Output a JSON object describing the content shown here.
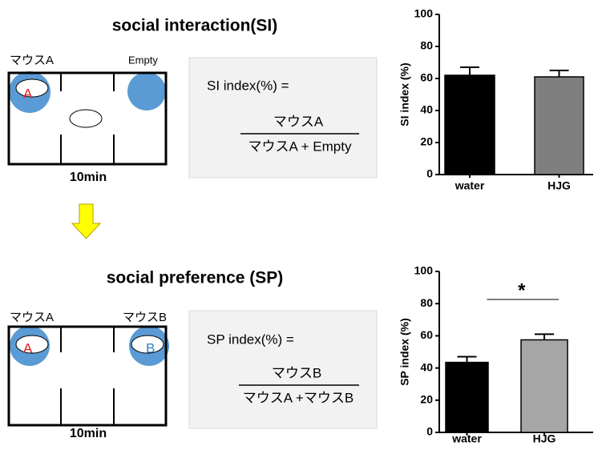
{
  "si_panel": {
    "title": "social interaction(SI)",
    "left_label": "マウスA",
    "right_label": "Empty",
    "left_marker": "A",
    "duration": "10min",
    "formula": {
      "lhs": "SI index(%) =",
      "numerator": "マウスA",
      "denominator": "マウスA + Empty"
    }
  },
  "sp_panel": {
    "title": "social preference (SP)",
    "left_label": "マウスA",
    "right_label": "マウスB",
    "left_marker": "A",
    "right_marker": "B",
    "duration": "10min",
    "formula": {
      "lhs": "SP index(%) =",
      "numerator": "マウスB",
      "denominator": "マウスA +マウスB"
    }
  },
  "chart_data": [
    {
      "type": "bar",
      "ylabel": "SI index (%)",
      "categories": [
        "water",
        "HJG"
      ],
      "values": [
        62,
        61
      ],
      "errors": [
        5,
        4
      ],
      "colors": [
        "#000000",
        "#7f7f7f"
      ],
      "ylim": [
        0,
        100
      ],
      "yticks": [
        0,
        20,
        40,
        60,
        80,
        100
      ]
    },
    {
      "type": "bar",
      "ylabel": "SP index (%)",
      "categories": [
        "water",
        "HJG"
      ],
      "values": [
        43.5,
        57.5
      ],
      "errors": [
        3.5,
        3.5
      ],
      "colors": [
        "#000000",
        "#a6a6a6"
      ],
      "ylim": [
        0,
        100
      ],
      "yticks": [
        0,
        20,
        40,
        60,
        80,
        100
      ],
      "annotation": "*"
    }
  ]
}
